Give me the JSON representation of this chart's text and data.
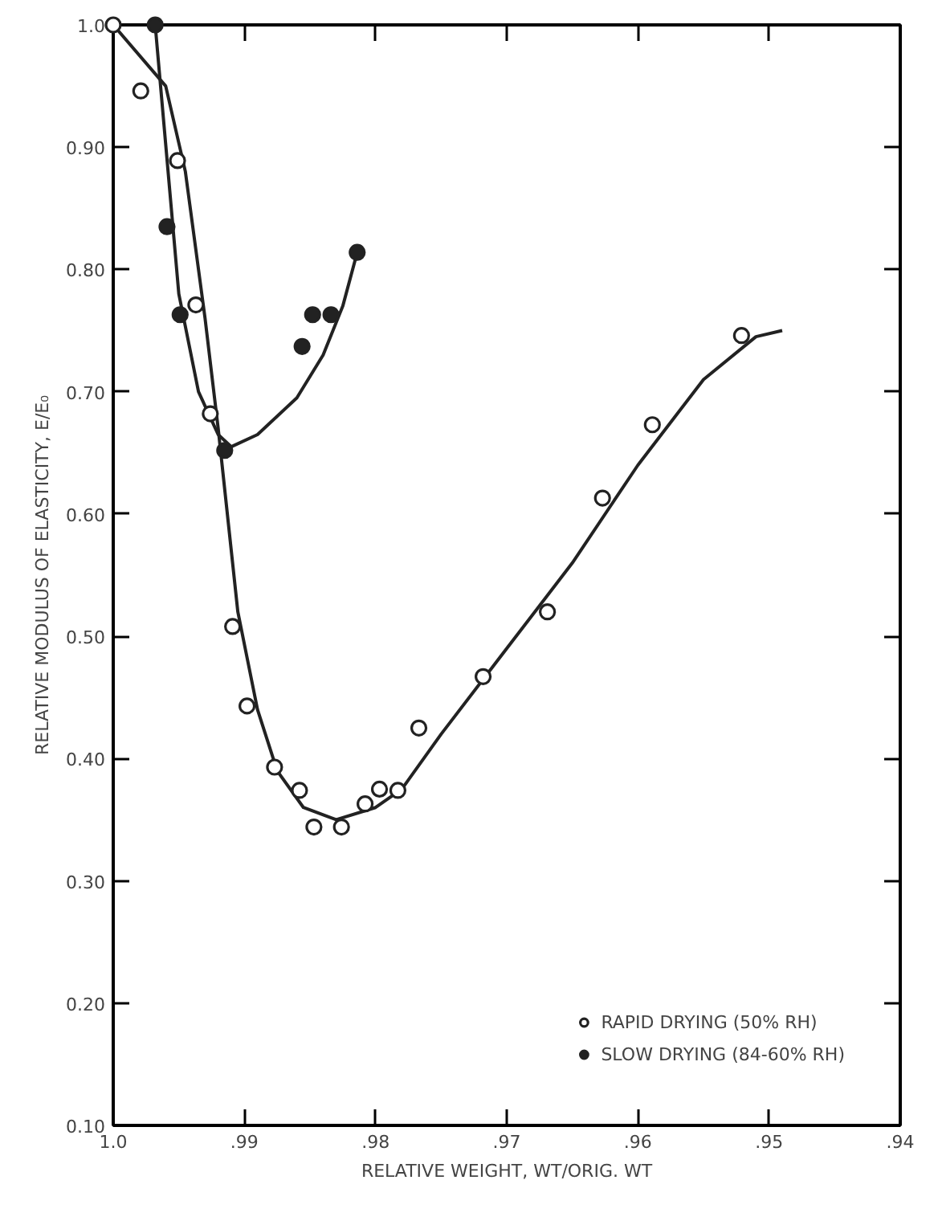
{
  "chart_data": {
    "type": "scatter",
    "xlabel": "RELATIVE WEIGHT, WT/ORIG. WT",
    "ylabel": "RELATIVE MODULUS OF ELASTICITY, E/E₀",
    "xlim": [
      1.0,
      0.94
    ],
    "ylim": [
      0.1,
      1.0
    ],
    "xticks": [
      {
        "value": 1.0,
        "label": "1.0"
      },
      {
        "value": 0.99,
        "label": ".99"
      },
      {
        "value": 0.98,
        "label": ".98"
      },
      {
        "value": 0.97,
        "label": ".97"
      },
      {
        "value": 0.96,
        "label": ".96"
      },
      {
        "value": 0.95,
        "label": ".95"
      },
      {
        "value": 0.94,
        "label": ".94"
      }
    ],
    "yticks": [
      {
        "value": 0.1,
        "label": "0.10"
      },
      {
        "value": 0.2,
        "label": "0.20"
      },
      {
        "value": 0.3,
        "label": "0.30"
      },
      {
        "value": 0.4,
        "label": "0.40"
      },
      {
        "value": 0.5,
        "label": "0.50"
      },
      {
        "value": 0.6,
        "label": "0.60"
      },
      {
        "value": 0.7,
        "label": "0.70"
      },
      {
        "value": 0.8,
        "label": "0.80"
      },
      {
        "value": 0.9,
        "label": "0.90"
      },
      {
        "value": 1.0,
        "label": "1.0"
      }
    ],
    "grid": false,
    "legend": "bottom right",
    "series": [
      {
        "name": "RAPID DRYING (50% RH)",
        "color": "#ffffff",
        "marker": "circle",
        "x": [
          1.0,
          0.9979,
          0.9951,
          0.9937,
          0.9926,
          0.9909,
          0.9898,
          0.9877,
          0.9858,
          0.9847,
          0.9826,
          0.9808,
          0.9797,
          0.9783,
          0.9767,
          0.9718,
          0.9669,
          0.9627,
          0.9589,
          0.9521
        ],
        "values": [
          1.0,
          0.946,
          0.889,
          0.771,
          0.682,
          0.508,
          0.443,
          0.393,
          0.374,
          0.344,
          0.344,
          0.363,
          0.375,
          0.374,
          0.425,
          0.467,
          0.52,
          0.613,
          0.673,
          0.746
        ]
      },
      {
        "name": "SLOW DRYING (84-60% RH)",
        "color": "#222222",
        "marker": "circle",
        "x": [
          0.9968,
          0.9959,
          0.9949,
          0.9915,
          0.9856,
          0.9848,
          0.9834,
          0.9814
        ],
        "values": [
          1.0,
          0.835,
          0.763,
          0.652,
          0.737,
          0.763,
          0.763,
          0.814
        ]
      },
      {
        "type": "line",
        "color": "#222222",
        "line_style": "solid",
        "x": [
          1.0,
          0.996,
          0.9945,
          0.993,
          0.992,
          0.9905,
          0.989,
          0.9875,
          0.9855,
          0.983,
          0.98,
          0.978,
          0.975,
          0.97,
          0.965,
          0.96,
          0.955,
          0.951,
          0.949
        ],
        "values": [
          1.0,
          0.95,
          0.88,
          0.76,
          0.67,
          0.52,
          0.44,
          0.39,
          0.36,
          0.35,
          0.36,
          0.375,
          0.42,
          0.49,
          0.56,
          0.64,
          0.71,
          0.745,
          0.75
        ]
      },
      {
        "type": "line",
        "color": "#222222",
        "line_style": "solid",
        "x": [
          0.9968,
          0.995,
          0.9935,
          0.992,
          0.991,
          0.989,
          0.986,
          0.984,
          0.9825,
          0.9815
        ],
        "values": [
          1.0,
          0.78,
          0.7,
          0.665,
          0.655,
          0.665,
          0.695,
          0.73,
          0.77,
          0.81
        ]
      }
    ]
  }
}
